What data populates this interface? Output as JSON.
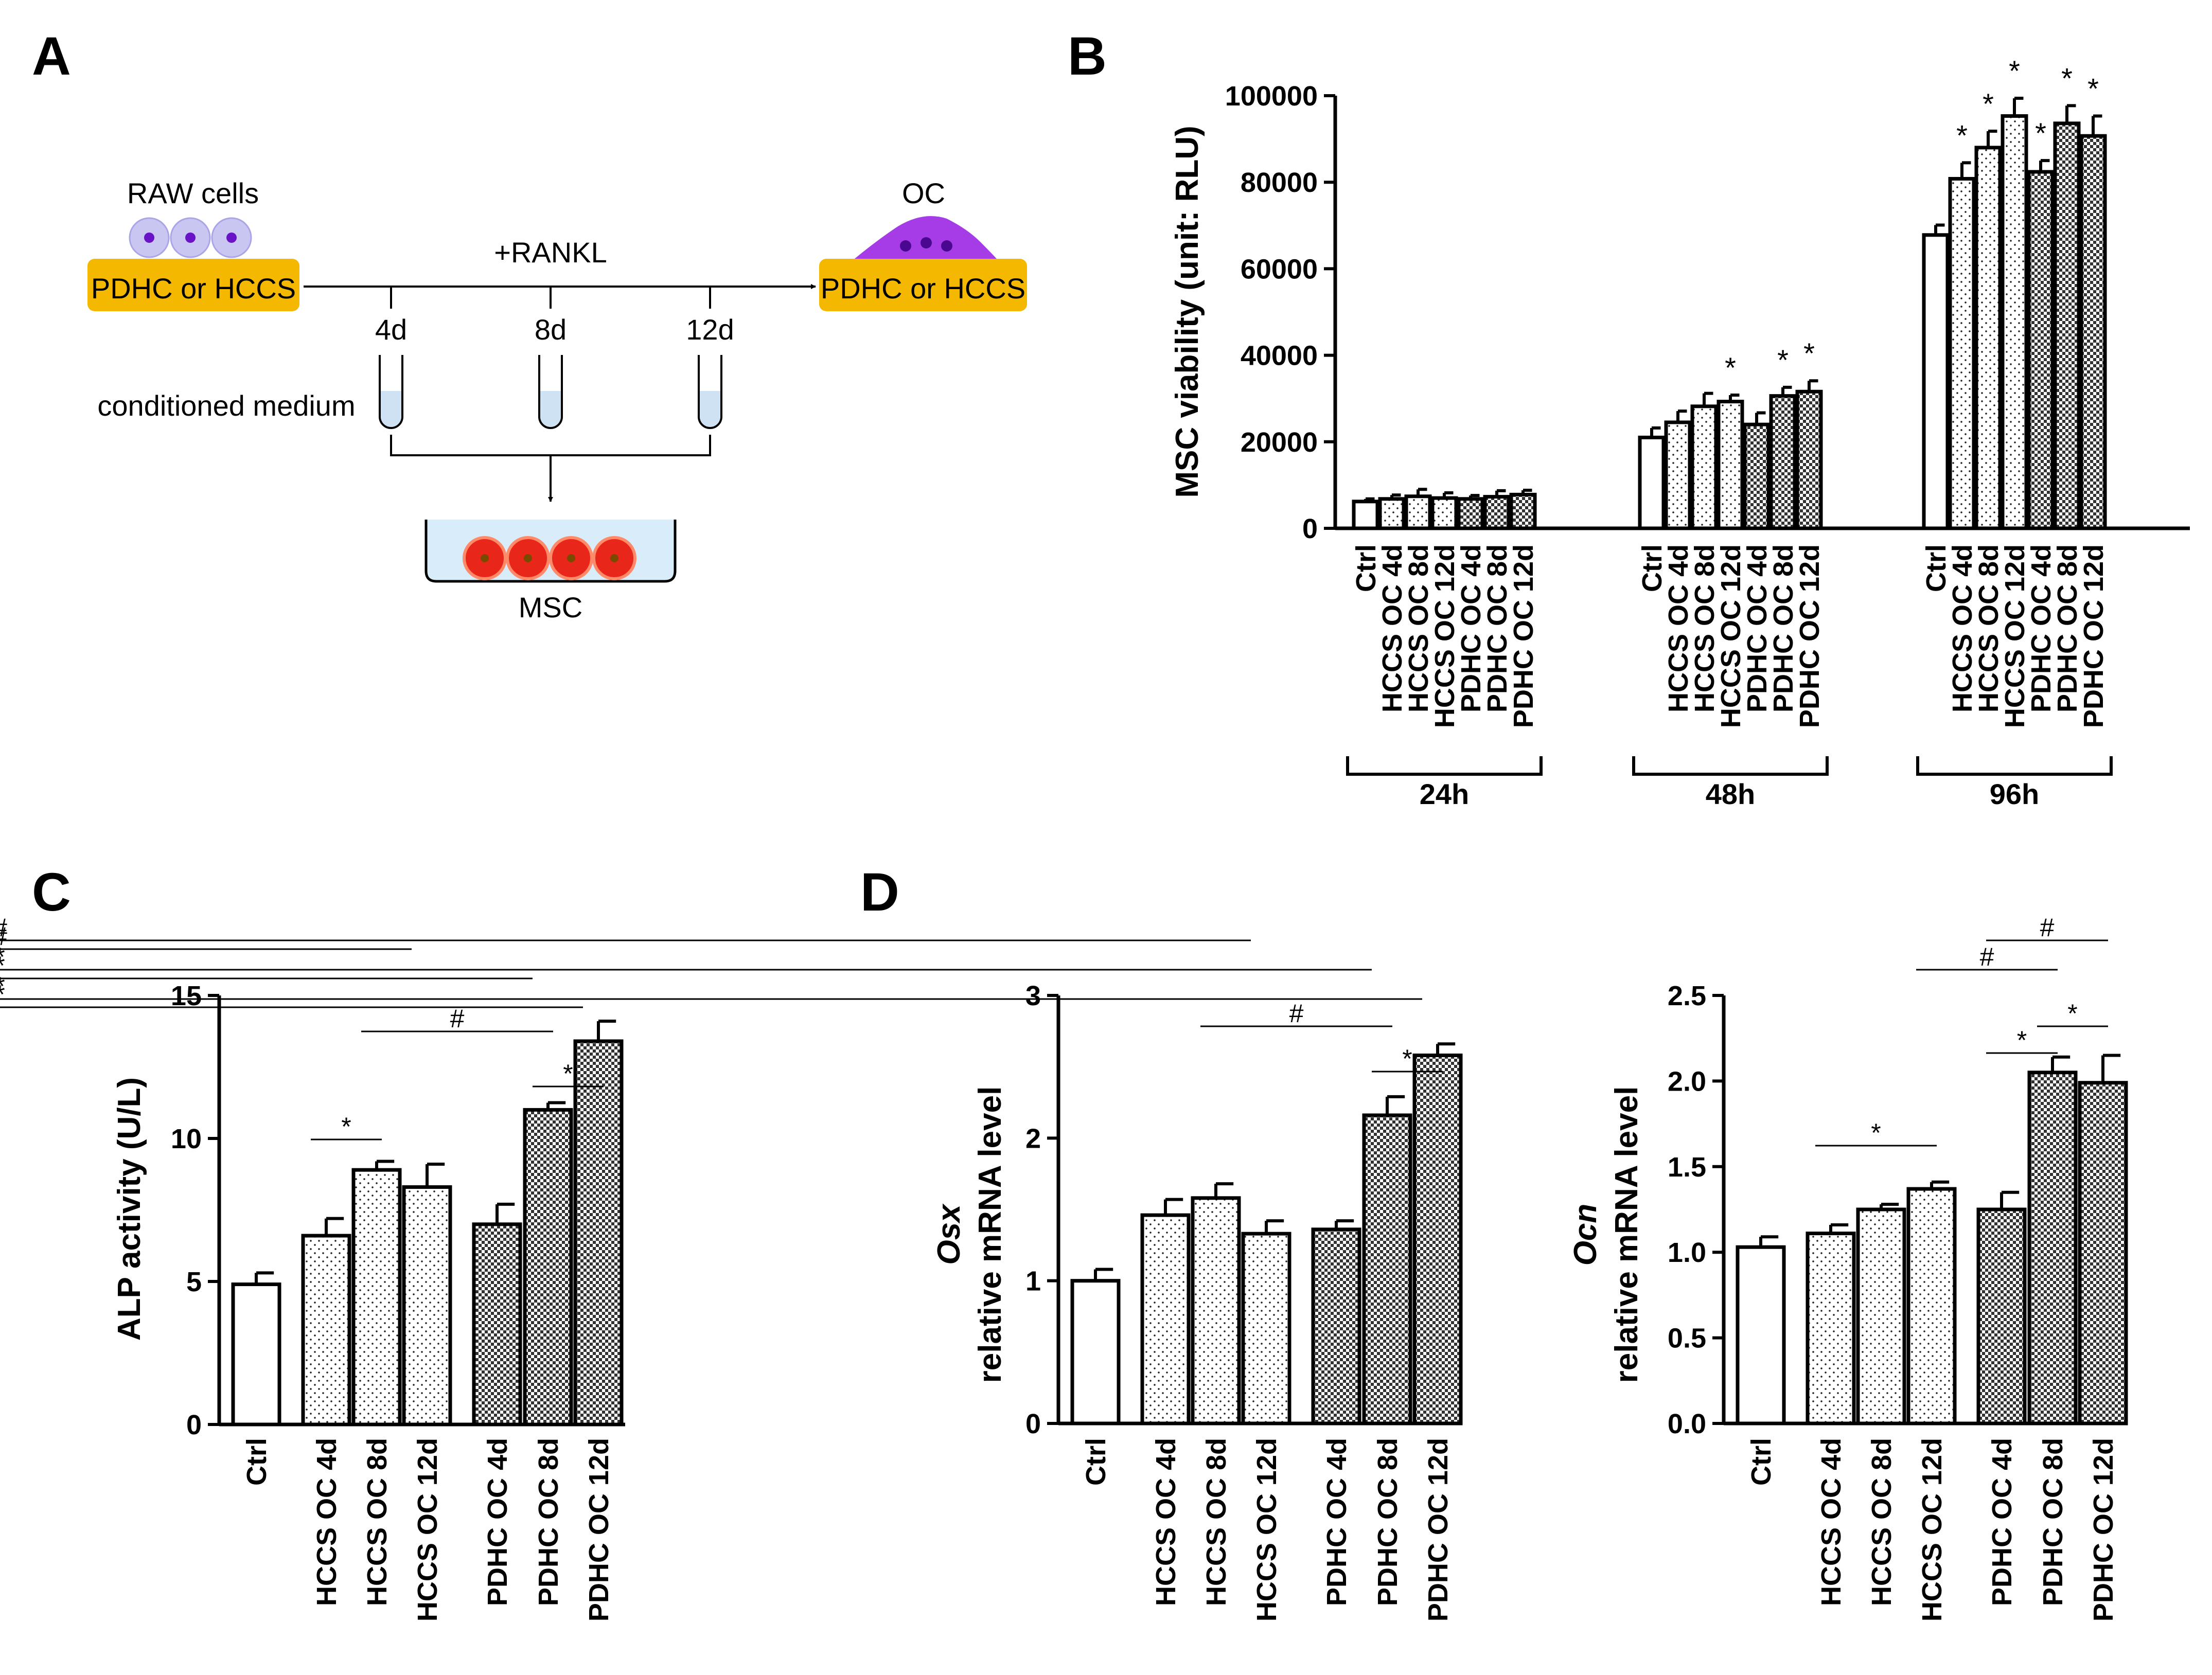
{
  "figure": {
    "panel_labels": [
      "A",
      "B",
      "C",
      "D"
    ],
    "schematic": {
      "raw_cells_label": "RAW cells",
      "substrate_label": "PDHC or HCCS",
      "oc_label": "OC",
      "rankl_label": "+RANKL",
      "days": [
        "4d",
        "8d",
        "12d"
      ],
      "conditioned_medium_label": "conditioned medium",
      "msc_label": "MSC",
      "colors": {
        "substrate": "#f5b800",
        "raw_cell_halo": "#c9c6f2",
        "raw_cell_dot": "#6a12c8",
        "oc": "#a63ce6",
        "msc": "#e8261a",
        "medium": "#cfe2f3"
      }
    }
  },
  "chart_data": [
    {
      "panel": "B",
      "type": "bar",
      "ylabel": "MSC viability (unit: RLU)",
      "ylim": [
        0,
        100000
      ],
      "yticks": [
        "0",
        "20000",
        "40000",
        "60000",
        "80000",
        "100000"
      ],
      "categories": [
        "Ctrl",
        "HCCS OC 4d",
        "HCCS OC 8d",
        "HCCS OC 12d",
        "PDHC OC 4d",
        "PDHC OC 8d",
        "PDHC OC 12d"
      ],
      "fills": [
        "white",
        "dots",
        "dots",
        "dots",
        "check",
        "check",
        "check"
      ],
      "groups": [
        {
          "label": "24h",
          "values": [
            6200,
            6800,
            7400,
            7000,
            6800,
            7300,
            7800
          ],
          "errors": [
            600,
            900,
            1600,
            1200,
            800,
            1400,
            1000
          ],
          "stars": [
            "",
            "",
            "",
            "",
            "",
            "",
            ""
          ]
        },
        {
          "label": "48h",
          "values": [
            21000,
            24500,
            28200,
            29300,
            24000,
            30600,
            31600
          ],
          "errors": [
            2200,
            2600,
            3000,
            1500,
            2700,
            2000,
            2500
          ],
          "stars": [
            "",
            "",
            "",
            "*",
            "",
            "*",
            "*"
          ]
        },
        {
          "label": "96h",
          "values": [
            67800,
            80800,
            88000,
            95300,
            82400,
            93600,
            90700
          ],
          "errors": [
            2300,
            3700,
            3800,
            4100,
            2600,
            4100,
            4600
          ],
          "stars": [
            "",
            "*",
            "*",
            "*",
            "*",
            "*",
            "*"
          ]
        }
      ]
    },
    {
      "panel": "C",
      "type": "bar",
      "ylabel": "ALP activity (U/L)",
      "ylim": [
        0,
        15
      ],
      "yticks": [
        "0",
        "5",
        "10",
        "15"
      ],
      "categories": [
        "Ctrl",
        "HCCS OC 4d",
        "HCCS OC 8d",
        "HCCS OC 12d",
        "PDHC OC 4d",
        "PDHC OC 8d",
        "PDHC OC 12d"
      ],
      "fills": [
        "white",
        "dots",
        "dots",
        "dots",
        "check",
        "check",
        "check"
      ],
      "values": [
        4.9,
        6.6,
        8.9,
        8.3,
        7.0,
        11.0,
        13.4
      ],
      "errors": [
        0.4,
        0.6,
        0.3,
        0.8,
        0.7,
        0.25,
        0.7
      ],
      "comparisons": [
        {
          "from": 1,
          "to": 2,
          "mark": "*"
        },
        {
          "from": 5,
          "to": 6,
          "mark": "*"
        },
        {
          "from": 2,
          "to": 5,
          "mark": "#"
        },
        {
          "from": 6,
          "to": 7,
          "mark": "*"
        },
        {
          "from": 5,
          "to": 7,
          "mark": "*"
        },
        {
          "from": 3,
          "to": 7,
          "mark": "#"
        }
      ]
    },
    {
      "panel": "D",
      "type": "bar",
      "ylabel_italic": "Osx",
      "ylabel": "relative mRNA level",
      "ylim": [
        0,
        3
      ],
      "yticks": [
        "0",
        "1",
        "2",
        "3"
      ],
      "categories": [
        "Ctrl",
        "HCCS OC 4d",
        "HCCS OC 8d",
        "HCCS OC 12d",
        "PDHC OC 4d",
        "PDHC OC 8d",
        "PDHC OC 12d"
      ],
      "fills": [
        "white",
        "dots",
        "dots",
        "dots",
        "check",
        "check",
        "check"
      ],
      "values": [
        1.0,
        1.46,
        1.58,
        1.33,
        1.36,
        2.16,
        2.58
      ],
      "errors": [
        0.08,
        0.11,
        0.1,
        0.09,
        0.06,
        0.13,
        0.08
      ],
      "comparisons": [
        {
          "from": 5,
          "to": 6,
          "mark": "*"
        },
        {
          "from": 2,
          "to": 5,
          "mark": "#"
        },
        {
          "from": 6,
          "to": 7,
          "mark": "*"
        },
        {
          "from": 5,
          "to": 7,
          "mark": "*"
        },
        {
          "from": 3,
          "to": 7,
          "mark": "#"
        }
      ]
    },
    {
      "panel": "D",
      "type": "bar",
      "ylabel_italic": "Ocn",
      "ylabel": "relative mRNA level",
      "ylim": [
        0,
        2.5
      ],
      "yticks": [
        "0.0",
        "0.5",
        "1.0",
        "1.5",
        "2.0",
        "2.5"
      ],
      "categories": [
        "Ctrl",
        "HCCS OC 4d",
        "HCCS OC 8d",
        "HCCS OC 12d",
        "PDHC OC 4d",
        "PDHC OC 8d",
        "PDHC OC 12d"
      ],
      "fills": [
        "white",
        "dots",
        "dots",
        "dots",
        "check",
        "check",
        "check"
      ],
      "values": [
        1.03,
        1.11,
        1.25,
        1.37,
        1.25,
        2.05,
        1.99
      ],
      "errors": [
        0.06,
        0.05,
        0.03,
        0.04,
        0.1,
        0.09,
        0.16
      ],
      "comparisons": [
        {
          "from": 1,
          "to": 3,
          "mark": "*"
        },
        {
          "from": 4,
          "to": 5,
          "mark": "*"
        },
        {
          "from": 5,
          "to": 6,
          "mark": "*"
        },
        {
          "from": 3,
          "to": 5,
          "mark": "#"
        },
        {
          "from": 4,
          "to": 6,
          "mark": "#"
        }
      ]
    }
  ]
}
